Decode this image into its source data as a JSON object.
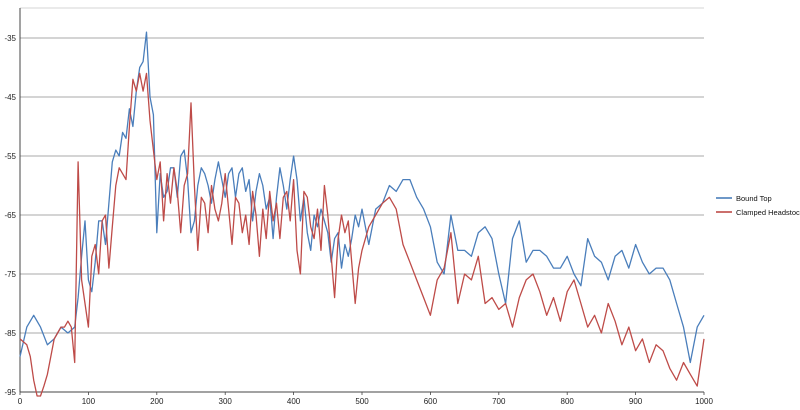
{
  "chart_data": {
    "type": "line",
    "title": "",
    "xlabel": "",
    "ylabel": "",
    "xlim": [
      0,
      1000
    ],
    "ylim": [
      -95,
      -25
    ],
    "x_ticks": [
      0,
      100,
      200,
      300,
      400,
      500,
      600,
      700,
      800,
      900,
      1000
    ],
    "y_ticks": [
      -35,
      -45,
      -55,
      -65,
      -75,
      -85,
      -95
    ],
    "x_tick_labels": [
      "0",
      "100",
      "200",
      "300",
      "400",
      "500",
      "600",
      "700",
      "800",
      "900",
      "1000"
    ],
    "y_tick_labels": [
      "-35",
      "-45",
      "-55",
      "-65",
      "-75",
      "-85",
      "-95"
    ],
    "grid": "horizontal",
    "legend_position": "right",
    "series": [
      {
        "name": "Bound Top",
        "color": "#4a7ebb",
        "x": [
          0,
          10,
          20,
          30,
          40,
          50,
          60,
          70,
          80,
          85,
          90,
          95,
          100,
          105,
          110,
          115,
          120,
          125,
          130,
          135,
          140,
          145,
          150,
          155,
          160,
          165,
          170,
          175,
          180,
          185,
          190,
          195,
          200,
          205,
          210,
          215,
          220,
          225,
          230,
          235,
          240,
          245,
          250,
          255,
          260,
          265,
          270,
          275,
          280,
          285,
          290,
          295,
          300,
          305,
          310,
          315,
          320,
          325,
          330,
          335,
          340,
          345,
          350,
          355,
          360,
          365,
          370,
          375,
          380,
          385,
          390,
          395,
          400,
          405,
          410,
          415,
          420,
          425,
          430,
          435,
          440,
          445,
          450,
          455,
          460,
          465,
          470,
          475,
          480,
          485,
          490,
          495,
          500,
          510,
          520,
          530,
          540,
          550,
          560,
          570,
          580,
          590,
          600,
          610,
          620,
          630,
          640,
          650,
          660,
          670,
          680,
          690,
          700,
          710,
          720,
          730,
          740,
          750,
          760,
          770,
          780,
          790,
          800,
          810,
          820,
          830,
          840,
          850,
          860,
          870,
          880,
          890,
          900,
          910,
          920,
          930,
          940,
          950,
          960,
          970,
          980,
          990,
          1000
        ],
        "values": [
          -89,
          -84,
          -82,
          -84,
          -87,
          -86,
          -84,
          -85,
          -84,
          -79,
          -72,
          -66,
          -76,
          -78,
          -73,
          -66,
          -66,
          -70,
          -63,
          -56,
          -54,
          -55,
          -51,
          -52,
          -47,
          -50,
          -44,
          -40,
          -39,
          -34,
          -45,
          -48,
          -68,
          -58,
          -62,
          -61,
          -57,
          -57,
          -62,
          -55,
          -54,
          -59,
          -68,
          -66,
          -60,
          -57,
          -58,
          -60,
          -63,
          -59,
          -56,
          -59,
          -62,
          -58,
          -57,
          -62,
          -58,
          -57,
          -61,
          -59,
          -66,
          -61,
          -58,
          -60,
          -64,
          -62,
          -69,
          -62,
          -57,
          -60,
          -64,
          -59,
          -55,
          -59,
          -66,
          -62,
          -68,
          -71,
          -65,
          -67,
          -64,
          -66,
          -68,
          -73,
          -69,
          -68,
          -74,
          -70,
          -72,
          -69,
          -65,
          -67,
          -64,
          -70,
          -64,
          -63,
          -60,
          -61,
          -59,
          -59,
          -62,
          -64,
          -67,
          -73,
          -75,
          -65,
          -71,
          -71,
          -72,
          -68,
          -67,
          -69,
          -75,
          -80,
          -69,
          -66,
          -73,
          -71,
          -71,
          -72,
          -74,
          -74,
          -72,
          -75,
          -77,
          -69,
          -72,
          -73,
          -76,
          -72,
          -71,
          -74,
          -70,
          -73,
          -75,
          -74,
          -74,
          -76,
          -80,
          -84,
          -90,
          -84,
          -82
        ]
      },
      {
        "name": "Clamped Headstock",
        "color": "#be4b48",
        "x": [
          0,
          10,
          15,
          20,
          25,
          30,
          35,
          40,
          45,
          50,
          55,
          60,
          65,
          70,
          75,
          80,
          85,
          90,
          95,
          100,
          105,
          110,
          115,
          120,
          125,
          130,
          135,
          140,
          145,
          150,
          155,
          160,
          165,
          170,
          175,
          180,
          185,
          190,
          195,
          200,
          205,
          210,
          215,
          220,
          225,
          230,
          235,
          240,
          245,
          250,
          255,
          260,
          265,
          270,
          275,
          280,
          285,
          290,
          295,
          300,
          305,
          310,
          315,
          320,
          325,
          330,
          335,
          340,
          345,
          350,
          355,
          360,
          365,
          370,
          375,
          380,
          385,
          390,
          395,
          400,
          405,
          410,
          415,
          420,
          425,
          430,
          435,
          440,
          445,
          450,
          455,
          460,
          465,
          470,
          475,
          480,
          485,
          490,
          495,
          500,
          510,
          520,
          530,
          540,
          550,
          560,
          570,
          580,
          590,
          600,
          610,
          620,
          630,
          640,
          650,
          660,
          670,
          680,
          690,
          700,
          710,
          720,
          730,
          740,
          750,
          760,
          770,
          780,
          790,
          800,
          810,
          820,
          830,
          840,
          850,
          860,
          870,
          880,
          890,
          900,
          910,
          920,
          930,
          940,
          950,
          960,
          970,
          980,
          990,
          1000
        ],
        "values": [
          -86,
          -87,
          -89,
          -93,
          -96,
          -97,
          -94,
          -92,
          -89,
          -86,
          -85,
          -84,
          -84,
          -83,
          -84,
          -90,
          -56,
          -76,
          -80,
          -84,
          -72,
          -70,
          -75,
          -66,
          -65,
          -74,
          -67,
          -60,
          -57,
          -58,
          -59,
          -50,
          -42,
          -44,
          -41,
          -44,
          -41,
          -49,
          -54,
          -59,
          -56,
          -66,
          -58,
          -63,
          -57,
          -61,
          -68,
          -60,
          -58,
          -46,
          -60,
          -71,
          -62,
          -63,
          -68,
          -60,
          -64,
          -66,
          -63,
          -58,
          -64,
          -70,
          -62,
          -63,
          -68,
          -65,
          -70,
          -61,
          -65,
          -72,
          -64,
          -69,
          -61,
          -66,
          -63,
          -69,
          -62,
          -61,
          -66,
          -59,
          -71,
          -75,
          -61,
          -62,
          -67,
          -69,
          -64,
          -71,
          -60,
          -65,
          -72,
          -79,
          -69,
          -65,
          -68,
          -66,
          -73,
          -80,
          -74,
          -71,
          -67,
          -65,
          -63,
          -62,
          -64,
          -70,
          -73,
          -76,
          -79,
          -82,
          -76,
          -74,
          -68,
          -80,
          -75,
          -76,
          -72,
          -80,
          -79,
          -81,
          -80,
          -84,
          -79,
          -76,
          -75,
          -78,
          -82,
          -79,
          -83,
          -78,
          -76,
          -80,
          -84,
          -82,
          -85,
          -80,
          -83,
          -87,
          -84,
          -88,
          -86,
          -90,
          -87,
          -88,
          -91,
          -93,
          -90,
          -92,
          -94,
          -86
        ]
      }
    ]
  }
}
